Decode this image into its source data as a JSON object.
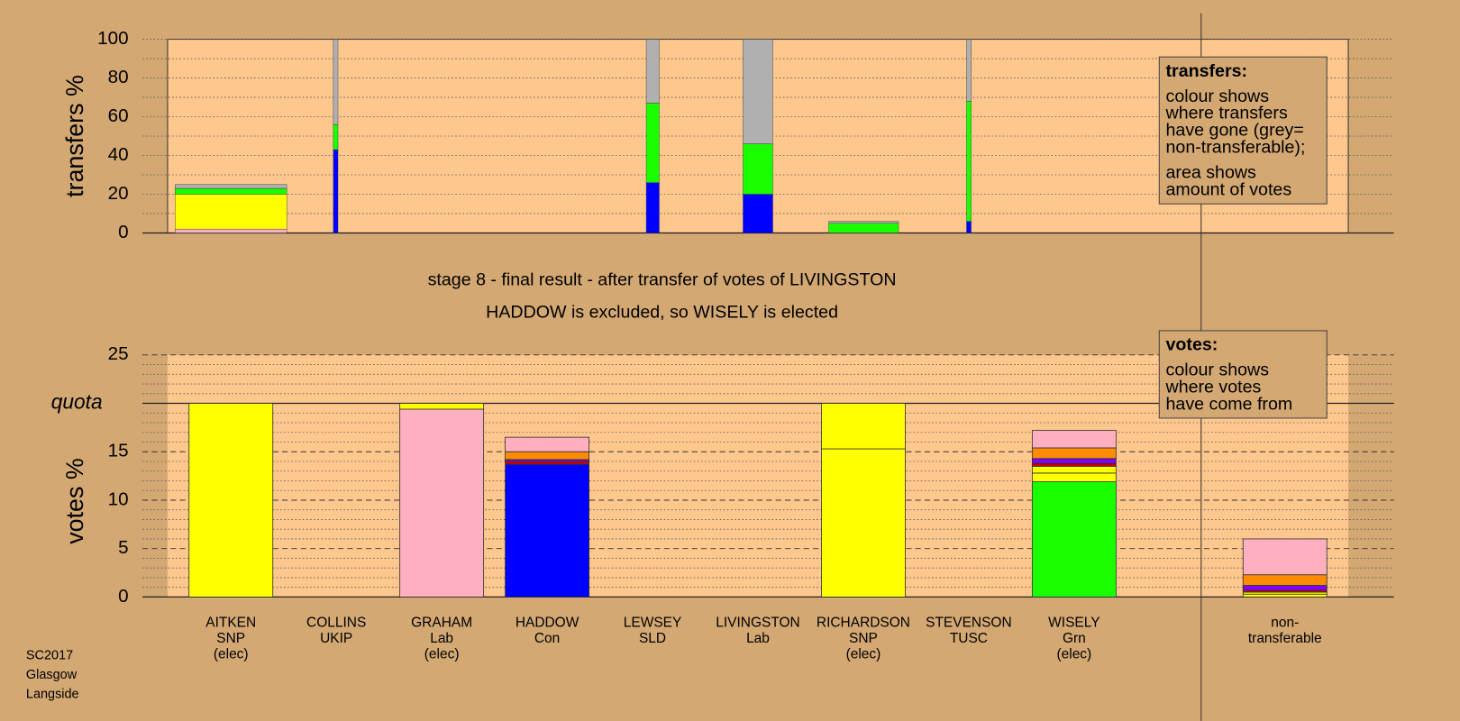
{
  "chart_data": [
    {
      "type": "transfer-bar",
      "ylabel": "transfers %",
      "ylim": [
        0,
        100
      ],
      "yticks": [
        0,
        20,
        40,
        60,
        80,
        100
      ],
      "minor_yticks": [
        10,
        30,
        50,
        70,
        90
      ],
      "xlim": [
        0,
        100
      ],
      "x_left": [
        0.63,
        14.04,
        40.54,
        48.74,
        55.99,
        67.67
      ],
      "x_right": [
        10.09,
        14.43,
        41.64,
        51.26,
        61.91,
        68.06
      ],
      "categories": [
        null,
        null,
        null,
        null,
        null,
        null
      ],
      "series": [
        {
          "color": "#ffb0c0",
          "values": [
            2,
            0,
            0,
            0,
            0,
            0
          ]
        },
        {
          "color": "#ffff00",
          "values": [
            18,
            0,
            0,
            0,
            0,
            0
          ]
        },
        {
          "color": "#0000ff",
          "values": [
            0,
            43,
            26,
            20,
            0,
            6
          ]
        },
        {
          "color": "#1aff00",
          "values": [
            3,
            13,
            41,
            26,
            5,
            62
          ]
        },
        {
          "color": "#b0b0b0",
          "values": [
            2,
            44,
            33,
            54,
            1,
            32
          ]
        }
      ],
      "grid": true,
      "note": {
        "title": "transfers:",
        "paragraphs": [
          [
            "colour shows",
            "where transfers",
            "have gone (grey=",
            "non-transferable);"
          ],
          [
            "area shows",
            "amount of votes"
          ]
        ]
      }
    },
    {
      "type": "bar",
      "title": "stage 8 - final result - after transfer of votes of LIVINGSTON",
      "subtitle": "HADDOW is excluded, so WISELY is elected",
      "ylabel": "votes %",
      "ylim": [
        0,
        25
      ],
      "yticks": [
        0,
        5,
        10,
        15,
        {
          "value": 20,
          "label": "quota"
        },
        25
      ],
      "minor_yticks": [
        1,
        2,
        3,
        4,
        6,
        7,
        8,
        9,
        11,
        12,
        13,
        14,
        16,
        17,
        18,
        19,
        21,
        22,
        23,
        24
      ],
      "categories": [
        [
          "AITKEN",
          "SNP",
          "(elec)"
        ],
        [
          "COLLINS",
          "UKIP"
        ],
        [
          "GRAHAM",
          "Lab",
          "(elec)"
        ],
        [
          "HADDOW",
          "Con"
        ],
        [
          "LEWSEY",
          "SLD"
        ],
        [
          "LIVINGSTON",
          "Lab"
        ],
        [
          "RICHARDSON",
          "SNP",
          "(elec)"
        ],
        [
          "STEVENSON",
          "TUSC"
        ],
        [
          "WISELY",
          "Grn",
          "(elec)"
        ],
        null,
        [
          "non-",
          "transferable"
        ]
      ],
      "series": [
        {
          "color": "#1aff00",
          "values": [
            0,
            0,
            0,
            0,
            0,
            0,
            0,
            0,
            11.9,
            0,
            0
          ]
        },
        {
          "color": "#ffff00",
          "values": [
            20,
            0,
            0,
            0,
            0,
            0,
            15.3,
            0,
            0.9,
            0,
            0.3
          ]
        },
        {
          "color": "#ffb0c0",
          "values": [
            0,
            0,
            19.4,
            0,
            0,
            0,
            0,
            0,
            0,
            0,
            0
          ]
        },
        {
          "color": "#0000ff",
          "values": [
            0,
            0,
            0,
            13.7,
            0,
            0,
            0,
            0,
            0,
            0,
            0
          ]
        },
        {
          "color": "#ffff00",
          "values": [
            0,
            0,
            0.6,
            0,
            0,
            0,
            4.7,
            0,
            0.7,
            0,
            0.2
          ]
        },
        {
          "color": "#cc0000",
          "values": [
            0,
            0,
            0,
            0.3,
            0,
            0,
            0,
            0,
            0.3,
            0,
            0.2
          ]
        },
        {
          "color": "#7f00ff",
          "values": [
            0,
            0,
            0,
            0.2,
            0,
            0,
            0,
            0,
            0.5,
            0,
            0.5
          ]
        },
        {
          "color": "#ff8c00",
          "values": [
            0,
            0,
            0,
            0.8,
            0,
            0,
            0,
            0,
            1.1,
            0,
            1.1
          ]
        },
        {
          "color": "#ffb0c0",
          "values": [
            0,
            0,
            0,
            1.5,
            0,
            0,
            0,
            0,
            1.8,
            0,
            3.7
          ]
        }
      ],
      "grid": true,
      "note": {
        "title": "votes:",
        "paragraphs": [
          [
            "colour shows",
            "where votes",
            "have come from"
          ]
        ]
      }
    }
  ],
  "footer": [
    "SC2017",
    "Glasgow",
    "Langside"
  ]
}
